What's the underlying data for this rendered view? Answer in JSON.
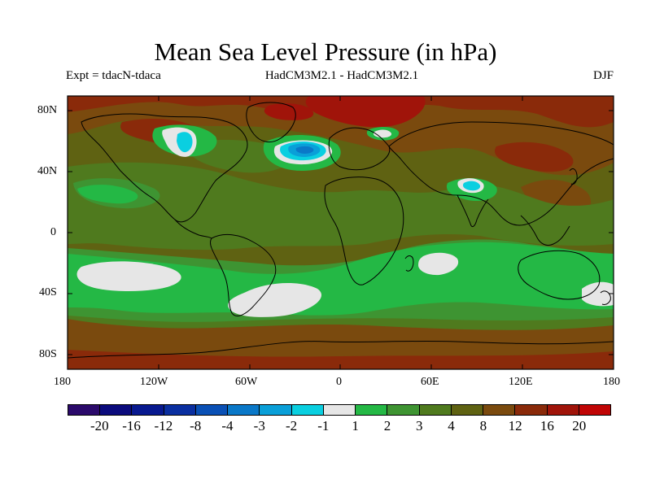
{
  "title": "Mean Sea Level Pressure (in hPa)",
  "subtitle_left": "Expt = tdacN-tdaca",
  "subtitle_center": "HadCM3M2.1 - HadCM3M2.1",
  "subtitle_right": "DJF",
  "axes": {
    "x_ticks": [
      "180",
      "120W",
      "60W",
      "0",
      "60E",
      "120E",
      "180"
    ],
    "y_ticks": [
      "80N",
      "40N",
      "0",
      "40S",
      "80S"
    ]
  },
  "colorbar": {
    "labels": [
      "-20",
      "-16",
      "-12",
      "-8",
      "-4",
      "-3",
      "-2",
      "-1",
      "1",
      "2",
      "3",
      "4",
      "8",
      "12",
      "16",
      "20"
    ],
    "colors": [
      "#2b0a6b",
      "#0b0b7d",
      "#08198f",
      "#0a2fa0",
      "#0a50b5",
      "#0a78c8",
      "#0a9fd8",
      "#0acfe0",
      "#e6e6e6",
      "#24b845",
      "#3e9432",
      "#4f7a1e",
      "#5f6212",
      "#7a4a0e",
      "#8a2a0a",
      "#a0140a",
      "#c00505"
    ]
  },
  "map": {
    "projection": "cylindrical equidistant",
    "variable": "mean sea level pressure difference",
    "units": "hPa",
    "season": "DJF",
    "background_level": "4 to 8",
    "features": [
      {
        "name": "North Atlantic low",
        "min_level": "-3 to -2"
      },
      {
        "name": "Tibetan plateau low",
        "min_level": "-2 to -1"
      },
      {
        "name": "Southern Ocean pacific band",
        "min_level": "-1 to 1"
      },
      {
        "name": "Arctic high",
        "max_level": "12 to 16"
      }
    ]
  }
}
